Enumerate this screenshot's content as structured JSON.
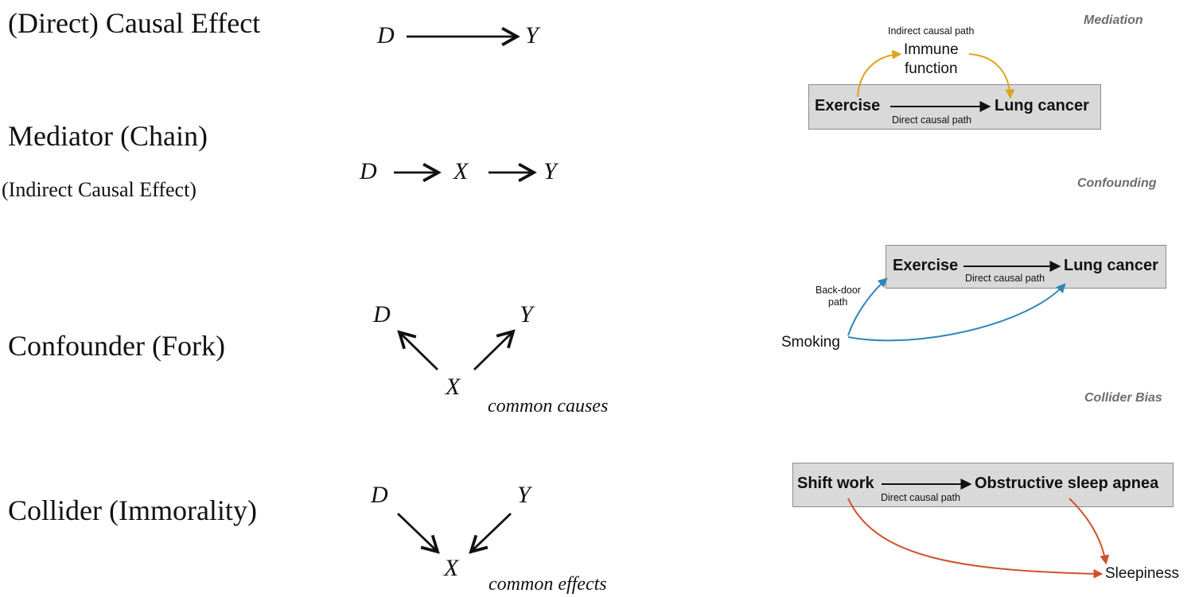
{
  "left": {
    "direct_title": "(Direct) Causal Effect",
    "mediator_title": "Mediator (Chain)",
    "mediator_subtitle": "(Indirect Causal Effect)",
    "confounder_title": "Confounder (Fork)",
    "collider_title": "Collider (Immorality)"
  },
  "vars": {
    "d": "D",
    "x": "X",
    "y": "Y"
  },
  "notes": {
    "common_causes": "common causes",
    "common_effects": "common effects"
  },
  "right": {
    "mediation": {
      "heading": "Mediation",
      "indirect_label": "Indirect causal path",
      "mediator_node_line1": "Immune",
      "mediator_node_line2": "function",
      "exposure": "Exercise",
      "outcome": "Lung cancer",
      "direct_label": "Direct causal path"
    },
    "confounding": {
      "heading": "Confounding",
      "exposure": "Exercise",
      "outcome": "Lung cancer",
      "direct_label": "Direct causal path",
      "backdoor_line1": "Back-door",
      "backdoor_line2": "path",
      "confounder": "Smoking"
    },
    "collider": {
      "heading": "Collider Bias",
      "exposure": "Shift work",
      "outcome": "Obstructive sleep apnea",
      "direct_label": "Direct causal path",
      "collider_node": "Sleepiness"
    }
  },
  "colors": {
    "mediation_arrow": "#e0a21b",
    "confounding_arrow": "#2e86b8",
    "collider_arrow": "#d0502a",
    "box_fill": "#d9d9d9",
    "heading_gray": "#6d6d6d"
  }
}
